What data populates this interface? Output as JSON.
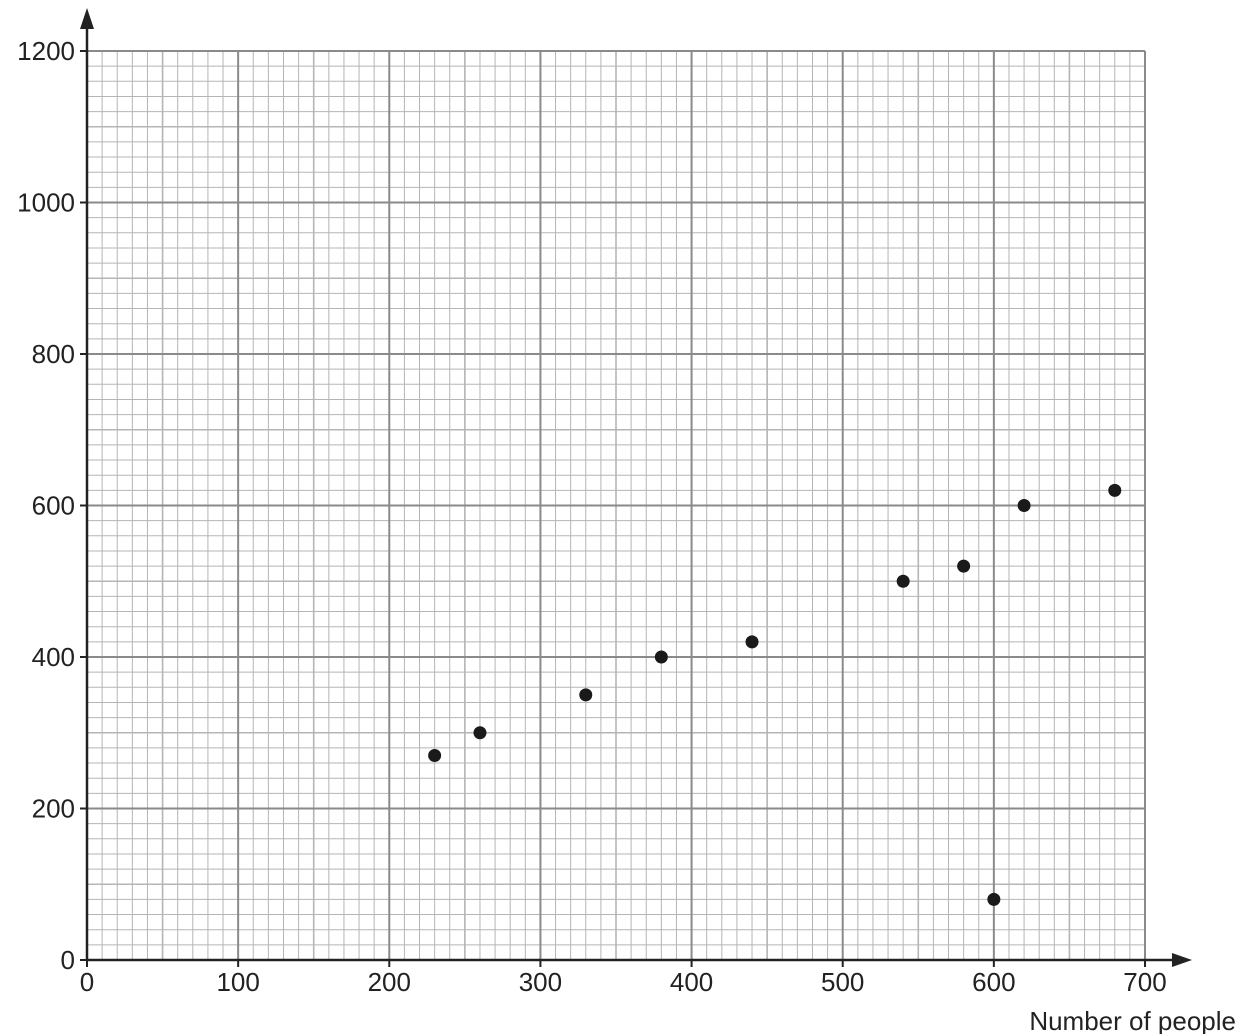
{
  "chart_data": {
    "type": "scatter",
    "title": "",
    "xlabel": "Number of people",
    "ylabel": "",
    "xlim": [
      0,
      700
    ],
    "ylim": [
      0,
      1200
    ],
    "x_ticks": [
      0,
      100,
      200,
      300,
      400,
      500,
      600,
      700
    ],
    "y_ticks": [
      0,
      200,
      400,
      600,
      800,
      1000,
      1200
    ],
    "x_tick_labels": [
      "0",
      "100",
      "200",
      "300",
      "400",
      "500",
      "600",
      "700"
    ],
    "y_tick_labels": [
      "0",
      "200",
      "400",
      "600",
      "800",
      "1000",
      "1200"
    ],
    "grid": true,
    "points": [
      {
        "x": 230,
        "y": 270
      },
      {
        "x": 260,
        "y": 300
      },
      {
        "x": 330,
        "y": 350
      },
      {
        "x": 380,
        "y": 400
      },
      {
        "x": 440,
        "y": 420
      },
      {
        "x": 540,
        "y": 500
      },
      {
        "x": 580,
        "y": 520
      },
      {
        "x": 600,
        "y": 80
      },
      {
        "x": 620,
        "y": 600
      },
      {
        "x": 680,
        "y": 620
      }
    ]
  },
  "colors": {
    "grid_minor": "#b5b5b5",
    "grid_major": "#8a8a8a",
    "axis": "#222222",
    "point": "#1a1a1a"
  }
}
